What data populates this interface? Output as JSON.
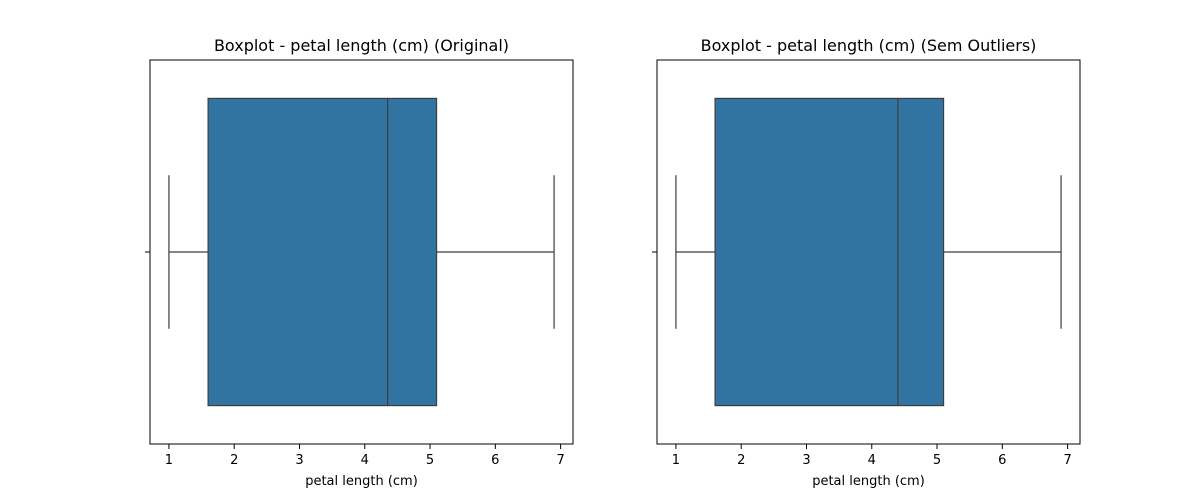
{
  "chart_data": [
    {
      "type": "boxplot",
      "title": "Boxplot - petal length (cm) (Original)",
      "xlabel": "petal length (cm)",
      "ylabel": "",
      "xlim": [
        0.71,
        7.19
      ],
      "xticks": [
        1,
        2,
        3,
        4,
        5,
        6,
        7
      ],
      "box": {
        "min": 1.0,
        "q1": 1.6,
        "median": 4.35,
        "q3": 5.1,
        "max": 6.9
      },
      "grid": false,
      "color": "#3274a1"
    },
    {
      "type": "boxplot",
      "title": "Boxplot - petal length (cm) (Sem Outliers)",
      "xlabel": "petal length (cm)",
      "ylabel": "",
      "xlim": [
        0.71,
        7.19
      ],
      "xticks": [
        1,
        2,
        3,
        4,
        5,
        6,
        7
      ],
      "box": {
        "min": 1.0,
        "q1": 1.6,
        "median": 4.4,
        "q3": 5.1,
        "max": 6.9
      },
      "grid": false,
      "color": "#3274a1"
    }
  ]
}
